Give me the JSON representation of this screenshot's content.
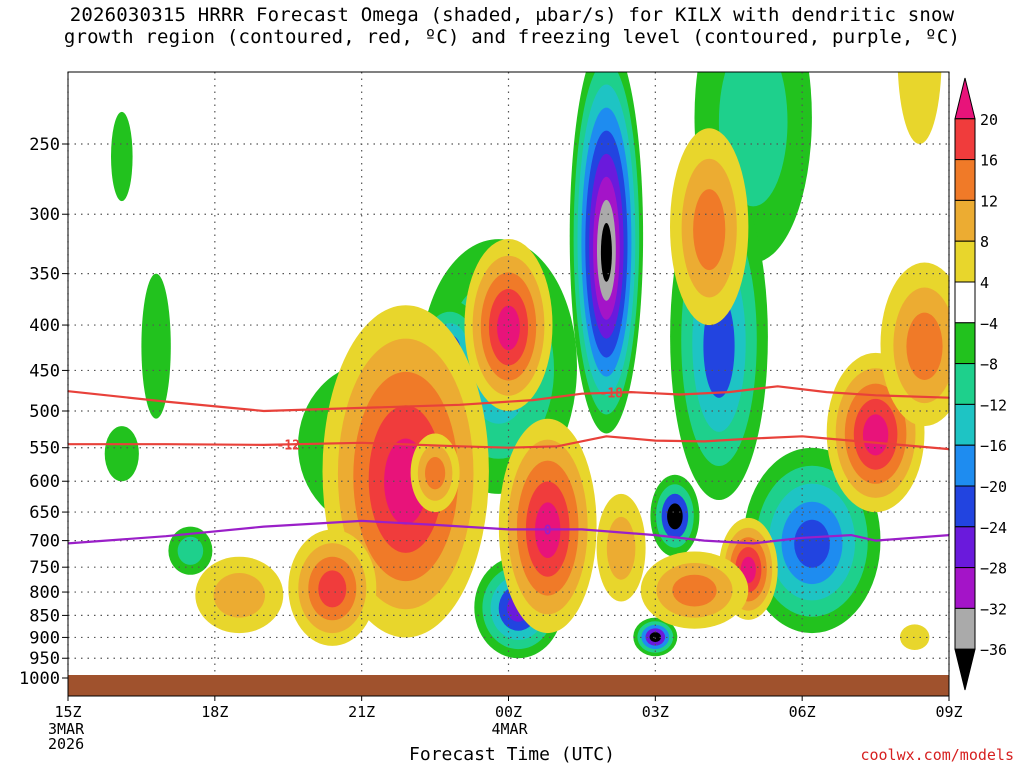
{
  "title": {
    "line1": "2026030315 HRRR Forecast Omega (shaded, μbar/s) for KILX with dendritic snow",
    "line2": "growth region (contoured, red, ºC) and freezing level (contoured, purple, ºC)"
  },
  "credit": "coolwx.com/models",
  "colors": {
    "background": "#ffffff",
    "ground": "#a0522d",
    "dgz_line": "#e8413a",
    "freezing_line": "#9a1fc8",
    "grid": "#555555"
  },
  "chart_data": {
    "type": "heatmap",
    "title": "2026030315 HRRR Forecast Omega (shaded, μbar/s) for KILX",
    "xlabel": "Forecast Time (UTC)",
    "ylabel": "",
    "x_range_hours": [
      0,
      18
    ],
    "x_ticks": [
      {
        "hour": 0,
        "label": "15Z"
      },
      {
        "hour": 3,
        "label": "18Z"
      },
      {
        "hour": 6,
        "label": "21Z"
      },
      {
        "hour": 9,
        "label": "00Z"
      },
      {
        "hour": 12,
        "label": "03Z"
      },
      {
        "hour": 15,
        "label": "06Z"
      },
      {
        "hour": 18,
        "label": "09Z"
      }
    ],
    "date_labels": [
      {
        "hour": 0,
        "lines": [
          "3MAR",
          "2026"
        ]
      },
      {
        "hour": 9,
        "lines": [
          "4MAR"
        ]
      }
    ],
    "y_range_hpa": [
      1000,
      200
    ],
    "y_ticks": [
      250,
      300,
      350,
      400,
      450,
      500,
      550,
      600,
      650,
      700,
      750,
      800,
      850,
      900,
      950,
      1000
    ],
    "colorbar": {
      "ticks": [
        "20",
        "16",
        "12",
        "8",
        "4",
        "−4",
        "−8",
        "−12",
        "−16",
        "−20",
        "−24",
        "−28",
        "−32",
        "−36"
      ],
      "bins": [
        {
          "range": ">20",
          "color": "#e8137a"
        },
        {
          "range": "16 to 20",
          "color": "#f03c3c"
        },
        {
          "range": "12 to 16",
          "color": "#f07a28"
        },
        {
          "range": "8 to 12",
          "color": "#ecac32"
        },
        {
          "range": "4 to 8",
          "color": "#e8d62c"
        },
        {
          "range": "-4 to 4",
          "color": "#ffffff"
        },
        {
          "range": "-8 to -4",
          "color": "#22c21e"
        },
        {
          "range": "-12 to -8",
          "color": "#1ed08c"
        },
        {
          "range": "-16 to -12",
          "color": "#1ec4c4"
        },
        {
          "range": "-20 to -16",
          "color": "#1e8cf0"
        },
        {
          "range": "-24 to -20",
          "color": "#2244e0"
        },
        {
          "range": "-28 to -24",
          "color": "#6a1adc"
        },
        {
          "range": "-32 to -28",
          "color": "#a414c8"
        },
        {
          "range": "-36 to -32",
          "color": "#aaaaaa"
        },
        {
          "range": "<-36",
          "color": "#000000"
        }
      ]
    },
    "omega_regions": [
      {
        "center": [
          8.8,
          470
        ],
        "rx": 1.6,
        "ry": 150,
        "levels": [
          -4,
          -8,
          -12
        ]
      },
      {
        "center": [
          11.0,
          360
        ],
        "rx": 0.75,
        "ry": 170,
        "levels": [
          -4,
          -8,
          -12,
          -16,
          -20,
          -24,
          -28,
          -32,
          -36
        ]
      },
      {
        "center": [
          14.0,
          250
        ],
        "rx": 1.2,
        "ry": 90,
        "levels": [
          -4,
          -8
        ]
      },
      {
        "center": [
          13.3,
          450
        ],
        "rx": 1.0,
        "ry": 180,
        "levels": [
          -4,
          -8,
          -12,
          -20
        ]
      },
      {
        "center": [
          12.4,
          660
        ],
        "rx": 0.5,
        "ry": 70,
        "levels": [
          -4,
          -8,
          -20,
          -36
        ]
      },
      {
        "center": [
          15.2,
          720
        ],
        "rx": 1.4,
        "ry": 170,
        "levels": [
          -4,
          -8,
          -12,
          -16,
          -20
        ]
      },
      {
        "center": [
          12.0,
          900
        ],
        "rx": 0.45,
        "ry": 45,
        "levels": [
          -4,
          -8,
          -16,
          -24,
          -36
        ]
      },
      {
        "center": [
          9.2,
          840
        ],
        "rx": 0.9,
        "ry": 110,
        "levels": [
          -4,
          -8,
          -12,
          -20,
          -24
        ]
      },
      {
        "center": [
          2.5,
          720
        ],
        "rx": 0.45,
        "ry": 45,
        "levels": [
          -4,
          -8
        ]
      },
      {
        "center": [
          6.3,
          560
        ],
        "rx": 1.6,
        "ry": 120,
        "levels": [
          -4
        ]
      },
      {
        "center": [
          7.8,
          430
        ],
        "rx": 0.7,
        "ry": 55,
        "levels": [
          -4,
          -8,
          -12,
          -20
        ]
      },
      {
        "center": [
          1.8,
          430
        ],
        "rx": 0.3,
        "ry": 80,
        "levels": [
          -4
        ]
      },
      {
        "center": [
          1.1,
          560
        ],
        "rx": 0.35,
        "ry": 40,
        "levels": [
          -4
        ]
      },
      {
        "center": [
          1.1,
          260
        ],
        "rx": 0.22,
        "ry": 30,
        "levels": [
          -4
        ]
      },
      {
        "center": [
          6.9,
          640
        ],
        "rx": 1.7,
        "ry": 260,
        "levels": [
          4,
          8,
          12,
          16,
          20
        ]
      },
      {
        "center": [
          5.4,
          800
        ],
        "rx": 0.9,
        "ry": 120,
        "levels": [
          4,
          8,
          12,
          16
        ]
      },
      {
        "center": [
          7.5,
          590
        ],
        "rx": 0.5,
        "ry": 60,
        "levels": [
          4,
          8,
          12
        ]
      },
      {
        "center": [
          9.8,
          700
        ],
        "rx": 1.0,
        "ry": 190,
        "levels": [
          4,
          8,
          12,
          16,
          20
        ]
      },
      {
        "center": [
          9.0,
          410
        ],
        "rx": 0.9,
        "ry": 90,
        "levels": [
          4,
          8,
          12,
          16,
          20
        ]
      },
      {
        "center": [
          13.9,
          760
        ],
        "rx": 0.6,
        "ry": 100,
        "levels": [
          4,
          8,
          12,
          16,
          20
        ]
      },
      {
        "center": [
          12.8,
          800
        ],
        "rx": 1.1,
        "ry": 80,
        "levels": [
          4,
          8,
          12
        ]
      },
      {
        "center": [
          16.5,
          540
        ],
        "rx": 1.0,
        "ry": 110,
        "levels": [
          4,
          8,
          12,
          16,
          20
        ]
      },
      {
        "center": [
          17.5,
          430
        ],
        "rx": 0.9,
        "ry": 90,
        "levels": [
          4,
          8,
          12
        ]
      },
      {
        "center": [
          13.1,
          320
        ],
        "rx": 0.8,
        "ry": 80,
        "levels": [
          4,
          8,
          12
        ]
      },
      {
        "center": [
          3.5,
          810
        ],
        "rx": 0.9,
        "ry": 80,
        "levels": [
          4,
          8
        ]
      },
      {
        "center": [
          11.3,
          720
        ],
        "rx": 0.5,
        "ry": 100,
        "levels": [
          4,
          8
        ]
      },
      {
        "center": [
          17.4,
          200
        ],
        "rx": 0.45,
        "ry": 50,
        "levels": [
          4
        ]
      },
      {
        "center": [
          17.3,
          900
        ],
        "rx": 0.3,
        "ry": 30,
        "levels": [
          4
        ]
      }
    ],
    "contours": [
      {
        "name": "dgz_-18",
        "label": "-18",
        "color": "#e8413a",
        "label_at_hour": 11.1,
        "x": [
          0,
          2,
          4,
          6,
          8,
          9.5,
          10.5,
          11.5,
          12.5,
          13.5,
          14.5,
          15.5,
          16.5,
          18
        ],
        "y": [
          475,
          488,
          500,
          496,
          492,
          486,
          478,
          476,
          479,
          476,
          469,
          476,
          480,
          483
        ]
      },
      {
        "name": "dgz_-12",
        "label": "-12",
        "color": "#e8413a",
        "label_at_hour": 4.5,
        "x": [
          0,
          2,
          4,
          6,
          8,
          9,
          10,
          11,
          12,
          13,
          14,
          15,
          16,
          18
        ],
        "y": [
          545,
          545,
          546,
          543,
          548,
          550,
          548,
          534,
          540,
          541,
          537,
          534,
          540,
          552
        ]
      },
      {
        "name": "freezing_0",
        "label": "0",
        "color": "#9a1fc8",
        "label_at_hour": 9.8,
        "x": [
          0,
          2,
          4,
          6,
          7.5,
          9,
          10.5,
          12,
          13,
          14,
          15,
          16,
          16.5,
          18
        ],
        "y": [
          705,
          692,
          675,
          665,
          672,
          680,
          680,
          690,
          700,
          705,
          695,
          690,
          700,
          690
        ]
      }
    ]
  },
  "xlabel": "Forecast Time (UTC)"
}
